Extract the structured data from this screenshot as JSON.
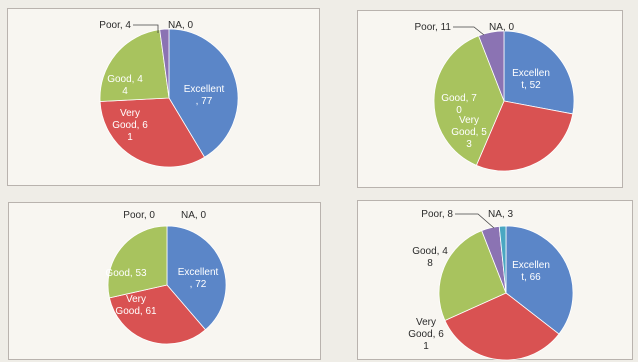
{
  "chart_data": [
    {
      "type": "pie",
      "categories": [
        "Excellent",
        "Very Good",
        "Good",
        "Poor",
        "NA"
      ],
      "values": [
        77,
        61,
        44,
        4,
        0
      ],
      "labels": [
        [
          "Excellent",
          ", 77"
        ],
        [
          "Very",
          "Good, 6",
          "1"
        ],
        [
          "Good, 4",
          "4"
        ],
        [
          "Poor, 4"
        ],
        [
          "NA, 0"
        ]
      ]
    },
    {
      "type": "pie",
      "categories": [
        "Excellent",
        "Very Good",
        "Good",
        "Poor",
        "NA"
      ],
      "values": [
        52,
        53,
        70,
        11,
        0
      ],
      "labels": [
        [
          "Excellen",
          "t, 52"
        ],
        [
          "Very",
          "Good, 5",
          "3"
        ],
        [
          "Good, 7",
          "0"
        ],
        [
          "Poor, 11"
        ],
        [
          "NA, 0"
        ]
      ]
    },
    {
      "type": "pie",
      "categories": [
        "Excellent",
        "Very Good",
        "Good",
        "Poor",
        "NA"
      ],
      "values": [
        72,
        61,
        53,
        0,
        0
      ],
      "labels": [
        [
          "Excellent",
          ", 72"
        ],
        [
          "Very",
          "Good, 61"
        ],
        [
          "Good, 53"
        ],
        [
          "Poor, 0"
        ],
        [
          "NA, 0"
        ]
      ]
    },
    {
      "type": "pie",
      "categories": [
        "Excellent",
        "Very Good",
        "Good",
        "Poor",
        "NA"
      ],
      "values": [
        66,
        61,
        48,
        8,
        3
      ],
      "labels": [
        [
          "Excellen",
          "t, 66"
        ],
        [
          "Very",
          "Good, 6",
          "1"
        ],
        [
          "Good, 4",
          "8"
        ],
        [
          "Poor, 8"
        ],
        [
          "NA, 3"
        ]
      ]
    }
  ],
  "colors": {
    "excellent": "#5b86c8",
    "very_good": "#d95252",
    "good": "#a8c35e",
    "poor": "#8b73b3",
    "na": "#4aa7c2"
  }
}
